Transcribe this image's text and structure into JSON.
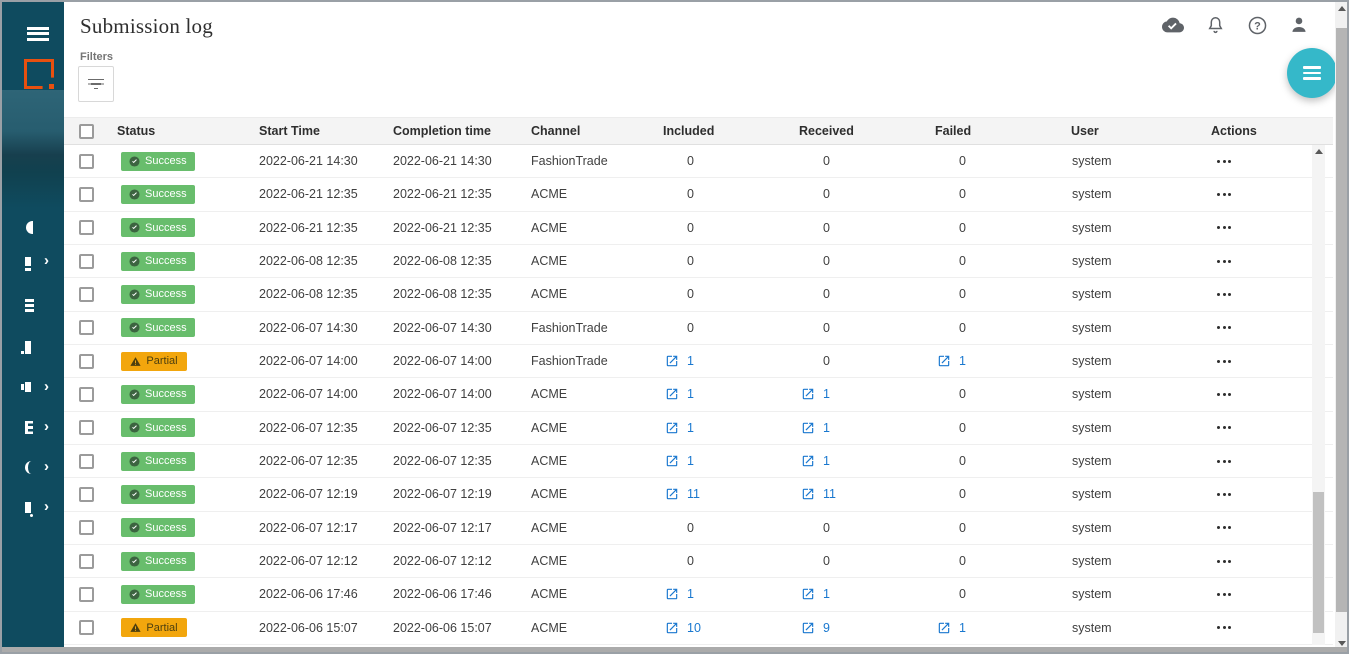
{
  "header": {
    "title": "Submission log",
    "filters_label": "Filters",
    "icons": [
      "cloud-done-icon",
      "notifications-icon",
      "help-icon",
      "account-icon"
    ]
  },
  "sidebar": {
    "items": [
      {
        "name": "sidebar-item-1",
        "icon": "clipped-glyph-1",
        "has_submenu": false
      },
      {
        "name": "sidebar-item-2",
        "icon": "clipped-glyph-2",
        "has_submenu": true
      },
      {
        "name": "sidebar-item-3",
        "icon": "clipped-glyph-3",
        "has_submenu": false
      },
      {
        "name": "sidebar-item-4",
        "icon": "clipped-glyph-4",
        "has_submenu": false
      },
      {
        "name": "sidebar-item-5",
        "icon": "clipped-glyph-5",
        "has_submenu": true
      },
      {
        "name": "sidebar-item-6",
        "icon": "clipped-glyph-6",
        "has_submenu": true
      },
      {
        "name": "sidebar-item-7",
        "icon": "clipped-glyph-7",
        "has_submenu": true
      },
      {
        "name": "sidebar-item-8",
        "icon": "clipped-glyph-8",
        "has_submenu": true
      }
    ]
  },
  "fab": {
    "icon": "menu-icon"
  },
  "table": {
    "columns": [
      "Status",
      "Start Time",
      "Completion time",
      "Channel",
      "Included",
      "Received",
      "Failed",
      "User",
      "Actions"
    ],
    "rows": [
      {
        "status": "Success",
        "start_time": "2022-06-21 14:30",
        "completion_time": "2022-06-21 14:30",
        "channel": "FashionTrade",
        "included": {
          "value": "0",
          "link": false
        },
        "received": {
          "value": "0",
          "link": false
        },
        "failed": {
          "value": "0",
          "link": false
        },
        "user": "system"
      },
      {
        "status": "Success",
        "start_time": "2022-06-21 12:35",
        "completion_time": "2022-06-21 12:35",
        "channel": "ACME",
        "included": {
          "value": "0",
          "link": false
        },
        "received": {
          "value": "0",
          "link": false
        },
        "failed": {
          "value": "0",
          "link": false
        },
        "user": "system"
      },
      {
        "status": "Success",
        "start_time": "2022-06-21 12:35",
        "completion_time": "2022-06-21 12:35",
        "channel": "ACME",
        "included": {
          "value": "0",
          "link": false
        },
        "received": {
          "value": "0",
          "link": false
        },
        "failed": {
          "value": "0",
          "link": false
        },
        "user": "system"
      },
      {
        "status": "Success",
        "start_time": "2022-06-08 12:35",
        "completion_time": "2022-06-08 12:35",
        "channel": "ACME",
        "included": {
          "value": "0",
          "link": false
        },
        "received": {
          "value": "0",
          "link": false
        },
        "failed": {
          "value": "0",
          "link": false
        },
        "user": "system"
      },
      {
        "status": "Success",
        "start_time": "2022-06-08 12:35",
        "completion_time": "2022-06-08 12:35",
        "channel": "ACME",
        "included": {
          "value": "0",
          "link": false
        },
        "received": {
          "value": "0",
          "link": false
        },
        "failed": {
          "value": "0",
          "link": false
        },
        "user": "system"
      },
      {
        "status": "Success",
        "start_time": "2022-06-07 14:30",
        "completion_time": "2022-06-07 14:30",
        "channel": "FashionTrade",
        "included": {
          "value": "0",
          "link": false
        },
        "received": {
          "value": "0",
          "link": false
        },
        "failed": {
          "value": "0",
          "link": false
        },
        "user": "system"
      },
      {
        "status": "Partial",
        "start_time": "2022-06-07 14:00",
        "completion_time": "2022-06-07 14:00",
        "channel": "FashionTrade",
        "included": {
          "value": "1",
          "link": true
        },
        "received": {
          "value": "0",
          "link": false
        },
        "failed": {
          "value": "1",
          "link": true
        },
        "user": "system"
      },
      {
        "status": "Success",
        "start_time": "2022-06-07 14:00",
        "completion_time": "2022-06-07 14:00",
        "channel": "ACME",
        "included": {
          "value": "1",
          "link": true
        },
        "received": {
          "value": "1",
          "link": true
        },
        "failed": {
          "value": "0",
          "link": false
        },
        "user": "system"
      },
      {
        "status": "Success",
        "start_time": "2022-06-07 12:35",
        "completion_time": "2022-06-07 12:35",
        "channel": "ACME",
        "included": {
          "value": "1",
          "link": true
        },
        "received": {
          "value": "1",
          "link": true
        },
        "failed": {
          "value": "0",
          "link": false
        },
        "user": "system"
      },
      {
        "status": "Success",
        "start_time": "2022-06-07 12:35",
        "completion_time": "2022-06-07 12:35",
        "channel": "ACME",
        "included": {
          "value": "1",
          "link": true
        },
        "received": {
          "value": "1",
          "link": true
        },
        "failed": {
          "value": "0",
          "link": false
        },
        "user": "system"
      },
      {
        "status": "Success",
        "start_time": "2022-06-07 12:19",
        "completion_time": "2022-06-07 12:19",
        "channel": "ACME",
        "included": {
          "value": "11",
          "link": true
        },
        "received": {
          "value": "11",
          "link": true
        },
        "failed": {
          "value": "0",
          "link": false
        },
        "user": "system"
      },
      {
        "status": "Success",
        "start_time": "2022-06-07 12:17",
        "completion_time": "2022-06-07 12:17",
        "channel": "ACME",
        "included": {
          "value": "0",
          "link": false
        },
        "received": {
          "value": "0",
          "link": false
        },
        "failed": {
          "value": "0",
          "link": false
        },
        "user": "system"
      },
      {
        "status": "Success",
        "start_time": "2022-06-07 12:12",
        "completion_time": "2022-06-07 12:12",
        "channel": "ACME",
        "included": {
          "value": "0",
          "link": false
        },
        "received": {
          "value": "0",
          "link": false
        },
        "failed": {
          "value": "0",
          "link": false
        },
        "user": "system"
      },
      {
        "status": "Success",
        "start_time": "2022-06-06 17:46",
        "completion_time": "2022-06-06 17:46",
        "channel": "ACME",
        "included": {
          "value": "1",
          "link": true
        },
        "received": {
          "value": "1",
          "link": true
        },
        "failed": {
          "value": "0",
          "link": false
        },
        "user": "system"
      },
      {
        "status": "Partial",
        "start_time": "2022-06-06 15:07",
        "completion_time": "2022-06-06 15:07",
        "channel": "ACME",
        "included": {
          "value": "10",
          "link": true
        },
        "received": {
          "value": "9",
          "link": true
        },
        "failed": {
          "value": "1",
          "link": true
        },
        "user": "system"
      }
    ]
  },
  "colors": {
    "sidebar_bg": "#0f4b5f",
    "logo_orange": "#e8500f",
    "fab_teal": "#35b8c9",
    "link_blue": "#1a78cf",
    "success_green": "#68bd6c",
    "partial_amber": "#f2a60d"
  }
}
